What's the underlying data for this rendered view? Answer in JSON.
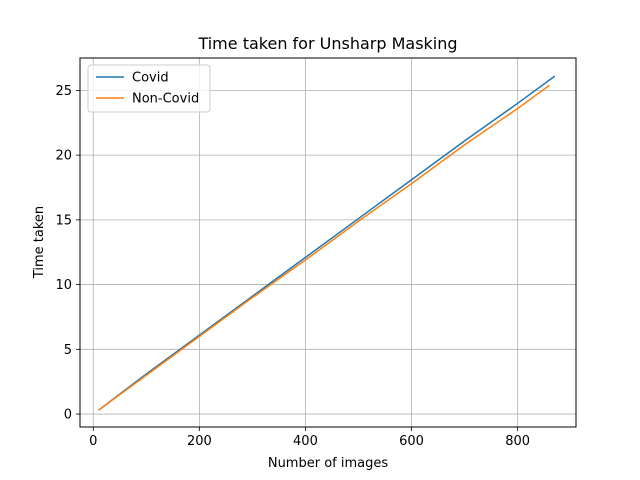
{
  "chart_data": {
    "type": "line",
    "title": "Time taken for Unsharp Masking",
    "xlabel": "Number of images",
    "ylabel": "Time taken",
    "xlim": [
      -25,
      910
    ],
    "ylim": [
      -1,
      27.5
    ],
    "xticks": [
      0,
      200,
      400,
      600,
      800
    ],
    "yticks": [
      0,
      5,
      10,
      15,
      20,
      25
    ],
    "xtick_labels": [
      "0",
      "200",
      "400",
      "600",
      "800"
    ],
    "ytick_labels": [
      "0",
      "5",
      "10",
      "15",
      "20",
      "25"
    ],
    "grid": true,
    "legend_position": "top-left",
    "series": [
      {
        "name": "Covid",
        "color": "#1f77b4",
        "x": [
          10,
          100,
          200,
          300,
          400,
          500,
          600,
          700,
          800,
          870
        ],
        "y": [
          0.3,
          3.1,
          6.1,
          9.1,
          12.1,
          15.1,
          18.1,
          21.1,
          24.0,
          26.1
        ]
      },
      {
        "name": "Non-Covid",
        "color": "#ff7f0e",
        "x": [
          10,
          100,
          200,
          300,
          400,
          500,
          600,
          700,
          800,
          860
        ],
        "y": [
          0.3,
          3.0,
          6.0,
          9.0,
          11.9,
          14.9,
          17.8,
          20.8,
          23.6,
          25.4
        ]
      }
    ]
  }
}
